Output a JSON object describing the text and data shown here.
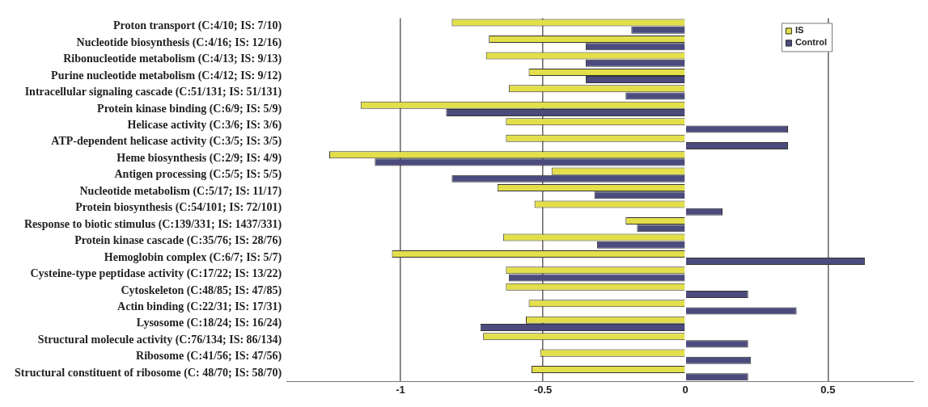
{
  "chart_data": {
    "type": "bar",
    "orientation": "horizontal",
    "categories": [
      "Proton transport (C:4/10; IS: 7/10)",
      "Nucleotide biosynthesis (C:4/16; IS: 12/16)",
      "Ribonucleotide metabolism (C:4/13; IS: 9/13)",
      "Purine nucleotide metabolism (C:4/12; IS: 9/12)",
      "Intracellular signaling cascade (C:51/131; IS: 51/131)",
      "Protein kinase binding (C:6/9; IS: 5/9)",
      "Helicase activity (C:3/6; IS: 3/6)",
      "ATP-dependent helicase activity (C:3/5; IS: 3/5)",
      "Heme biosynthesis (C:2/9; IS: 4/9)",
      "Antigen processing (C:5/5; IS: 5/5)",
      "Nucleotide metabolism (C:5/17; IS: 11/17)",
      "Protein biosynthesis (C:54/101; IS: 72/101)",
      "Response to biotic stimulus (C:139/331; IS: 1437/331)",
      "Protein kinase cascade (C:35/76; IS: 28/76)",
      "Hemoglobin complex (C:6/7; IS: 5/7)",
      "Cysteine-type peptidase activity (C:17/22; IS: 13/22)",
      "Cytoskeleton (C:48/85; IS: 47/85)",
      "Actin binding (C:22/31; IS: 17/31)",
      "Lysosome (C:18/24; IS: 16/24)",
      "Structural molecule activity (C:76/134; IS: 86/134)",
      "Ribosome (C:41/56; IS: 47/56)",
      "Structural constituent of ribosome (C: 48/70; IS: 58/70)"
    ],
    "series": [
      {
        "name": "IS",
        "color": "#e3df4a",
        "values": [
          -0.82,
          -0.69,
          -0.7,
          -0.55,
          -0.62,
          -1.14,
          -0.63,
          -0.63,
          -1.25,
          -0.47,
          -0.66,
          -0.53,
          -0.21,
          -0.64,
          -1.03,
          -0.63,
          -0.63,
          -0.55,
          -0.56,
          -0.71,
          -0.51,
          -0.54
        ]
      },
      {
        "name": "Control",
        "color": "#4b4b7e",
        "values": [
          -0.19,
          -0.35,
          -0.35,
          -0.35,
          -0.21,
          -0.84,
          0.36,
          0.36,
          -1.09,
          -0.82,
          -0.32,
          0.13,
          -0.17,
          -0.31,
          0.63,
          -0.62,
          0.22,
          0.39,
          -0.72,
          0.22,
          0.23,
          0.22
        ]
      }
    ],
    "xlim": [
      -1.4,
      0.8
    ],
    "xticks": [
      -1,
      -0.5,
      0,
      0.5
    ],
    "grid": "x",
    "legend": "top right"
  }
}
